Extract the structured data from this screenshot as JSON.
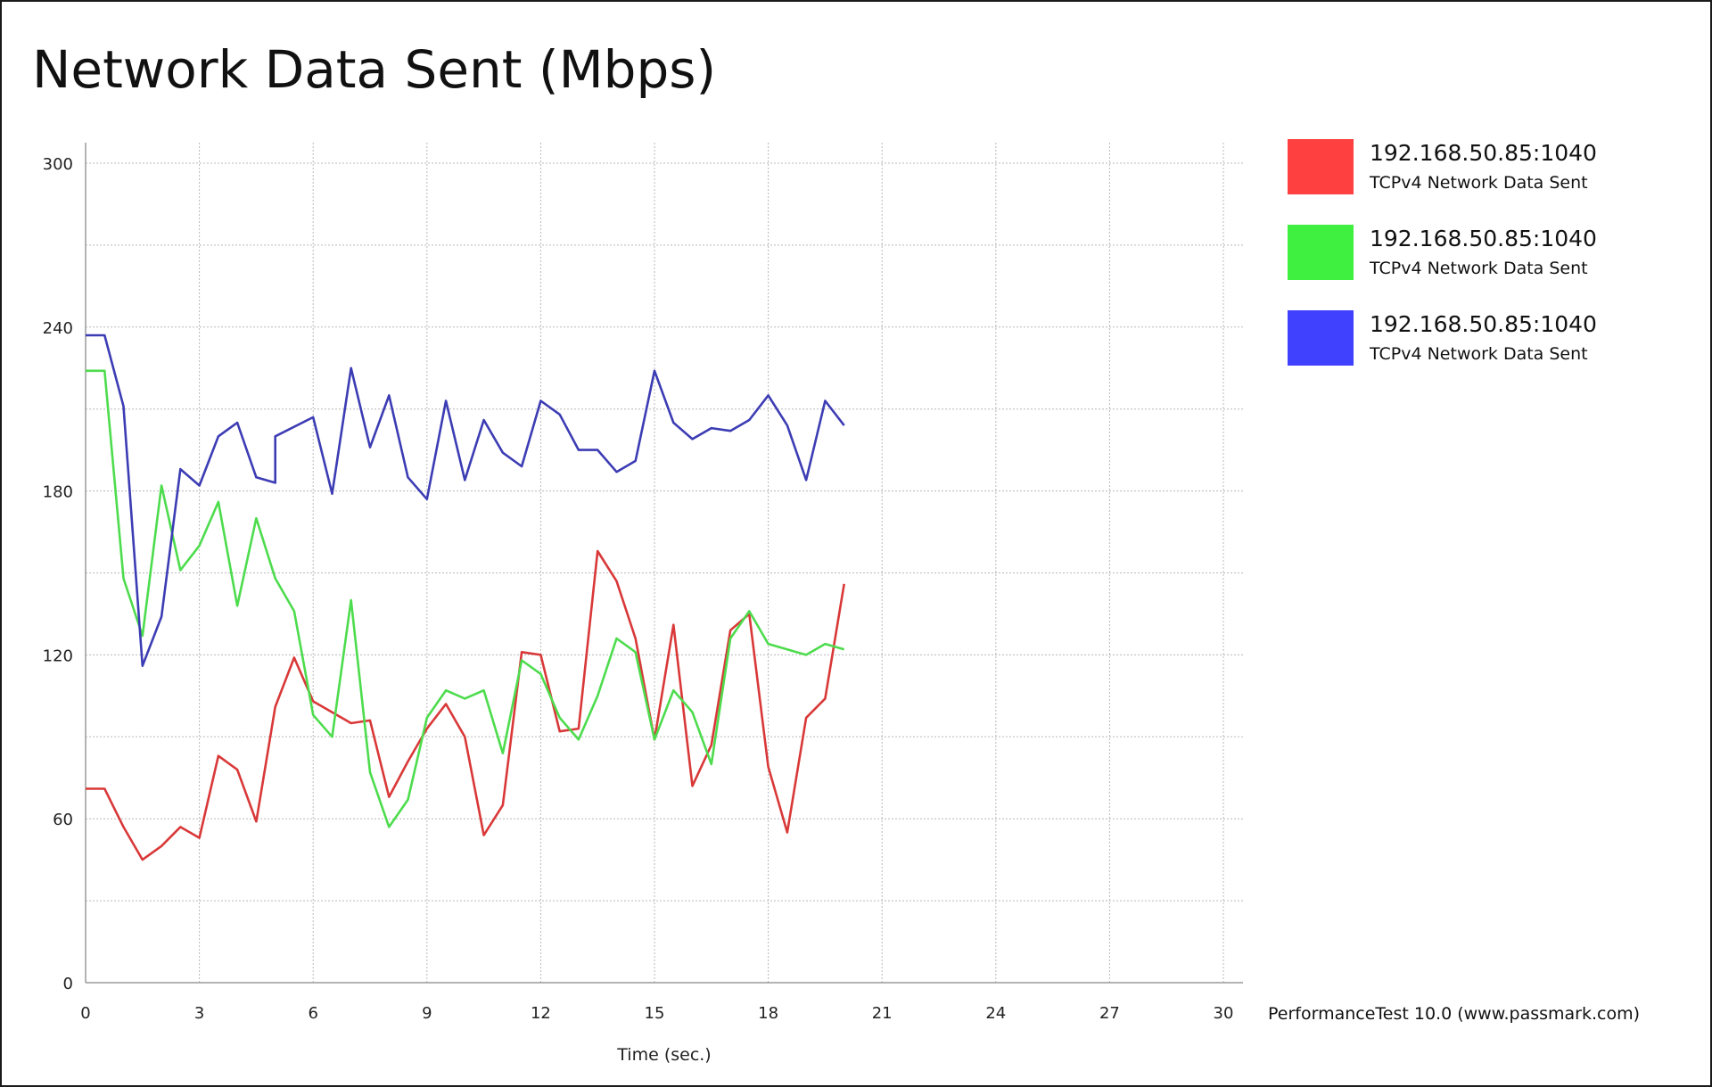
{
  "chart_data": {
    "type": "line",
    "title": "Network Data Sent (Mbps)",
    "xlabel": "Time (sec.)",
    "ylabel": "",
    "xlim": [
      0,
      30
    ],
    "ylim": [
      0,
      300
    ],
    "x_ticks": [
      0,
      3,
      6,
      9,
      12,
      15,
      18,
      21,
      24,
      27,
      30
    ],
    "y_ticks": [
      0,
      60,
      120,
      180,
      240,
      300
    ],
    "grid": true,
    "legend_position": "right",
    "series": [
      {
        "name": "192.168.50.85:1040",
        "subtitle": "TCPv4 Network Data Sent",
        "color": "#d93838",
        "swatch": "#ff4040",
        "points": [
          [
            0,
            71
          ],
          [
            0.5,
            71
          ],
          [
            1,
            57
          ],
          [
            1.5,
            45
          ],
          [
            2,
            50
          ],
          [
            2.5,
            57
          ],
          [
            3,
            53
          ],
          [
            3.5,
            83
          ],
          [
            4,
            78
          ],
          [
            4.5,
            59
          ],
          [
            5,
            101
          ],
          [
            5.5,
            119
          ],
          [
            6,
            103
          ],
          [
            6.5,
            99
          ],
          [
            7,
            95
          ],
          [
            7.5,
            96
          ],
          [
            8,
            68
          ],
          [
            8.5,
            81
          ],
          [
            9,
            93
          ],
          [
            9.5,
            102
          ],
          [
            10,
            90
          ],
          [
            10.5,
            54
          ],
          [
            11,
            65
          ],
          [
            11.5,
            121
          ],
          [
            12,
            120
          ],
          [
            12.5,
            92
          ],
          [
            13,
            93
          ],
          [
            13.5,
            158
          ],
          [
            14,
            147
          ],
          [
            14.5,
            126
          ],
          [
            15,
            89
          ],
          [
            15.5,
            131
          ],
          [
            16,
            72
          ],
          [
            16.5,
            87
          ],
          [
            17,
            129
          ],
          [
            17.5,
            135
          ],
          [
            18,
            79
          ],
          [
            18.5,
            55
          ],
          [
            19,
            97
          ],
          [
            19.5,
            104
          ],
          [
            20,
            146
          ]
        ]
      },
      {
        "name": "192.168.50.85:1040",
        "subtitle": "TCPv4 Network Data Sent",
        "color": "#4ddc4d",
        "swatch": "#40f040",
        "points": [
          [
            0,
            224
          ],
          [
            0.5,
            224
          ],
          [
            1,
            148
          ],
          [
            1.5,
            127
          ],
          [
            2,
            182
          ],
          [
            2.5,
            151
          ],
          [
            3,
            160
          ],
          [
            3.5,
            176
          ],
          [
            4,
            138
          ],
          [
            4.5,
            170
          ],
          [
            5,
            148
          ],
          [
            5.5,
            136
          ],
          [
            6,
            98
          ],
          [
            6.5,
            90
          ],
          [
            7,
            140
          ],
          [
            7.5,
            77
          ],
          [
            8,
            57
          ],
          [
            8.5,
            67
          ],
          [
            9,
            97
          ],
          [
            9.5,
            107
          ],
          [
            10,
            104
          ],
          [
            10.5,
            107
          ],
          [
            11,
            84
          ],
          [
            11.5,
            118
          ],
          [
            12,
            113
          ],
          [
            12.5,
            97
          ],
          [
            13,
            89
          ],
          [
            13.5,
            105
          ],
          [
            14,
            126
          ],
          [
            14.5,
            121
          ],
          [
            15,
            89
          ],
          [
            15.5,
            107
          ],
          [
            16,
            99
          ],
          [
            16.5,
            80
          ],
          [
            17,
            126
          ],
          [
            17.5,
            136
          ],
          [
            18,
            124
          ],
          [
            18.5,
            122
          ],
          [
            19,
            120
          ],
          [
            19.5,
            124
          ],
          [
            20,
            122
          ]
        ]
      },
      {
        "name": "192.168.50.85:1040",
        "subtitle": "TCPv4 Network Data Sent",
        "color": "#3c3cb4",
        "swatch": "#4040ff",
        "points": [
          [
            0,
            237
          ],
          [
            0.5,
            237
          ],
          [
            1,
            211
          ],
          [
            1.5,
            116
          ],
          [
            2,
            134
          ],
          [
            2.5,
            188
          ],
          [
            3,
            182
          ],
          [
            3.5,
            200
          ],
          [
            4,
            205
          ],
          [
            4.5,
            185
          ],
          [
            5,
            183
          ],
          [
            5,
            200
          ],
          [
            6,
            207
          ],
          [
            6.5,
            179
          ],
          [
            7,
            225
          ],
          [
            7.5,
            196
          ],
          [
            8,
            215
          ],
          [
            8.5,
            185
          ],
          [
            9,
            177
          ],
          [
            9.5,
            213
          ],
          [
            10,
            184
          ],
          [
            10.5,
            206
          ],
          [
            11,
            194
          ],
          [
            11.5,
            189
          ],
          [
            12,
            213
          ],
          [
            12.5,
            208
          ],
          [
            13,
            195
          ],
          [
            13.5,
            195
          ],
          [
            14,
            187
          ],
          [
            14.5,
            191
          ],
          [
            15,
            224
          ],
          [
            15.5,
            205
          ],
          [
            16,
            199
          ],
          [
            16.5,
            203
          ],
          [
            17,
            202
          ],
          [
            17.5,
            206
          ],
          [
            18,
            215
          ],
          [
            18.5,
            204
          ],
          [
            19,
            184
          ],
          [
            19.5,
            213
          ],
          [
            20,
            204
          ]
        ]
      }
    ]
  },
  "credit": "PerformanceTest 10.0 (www.passmark.com)"
}
